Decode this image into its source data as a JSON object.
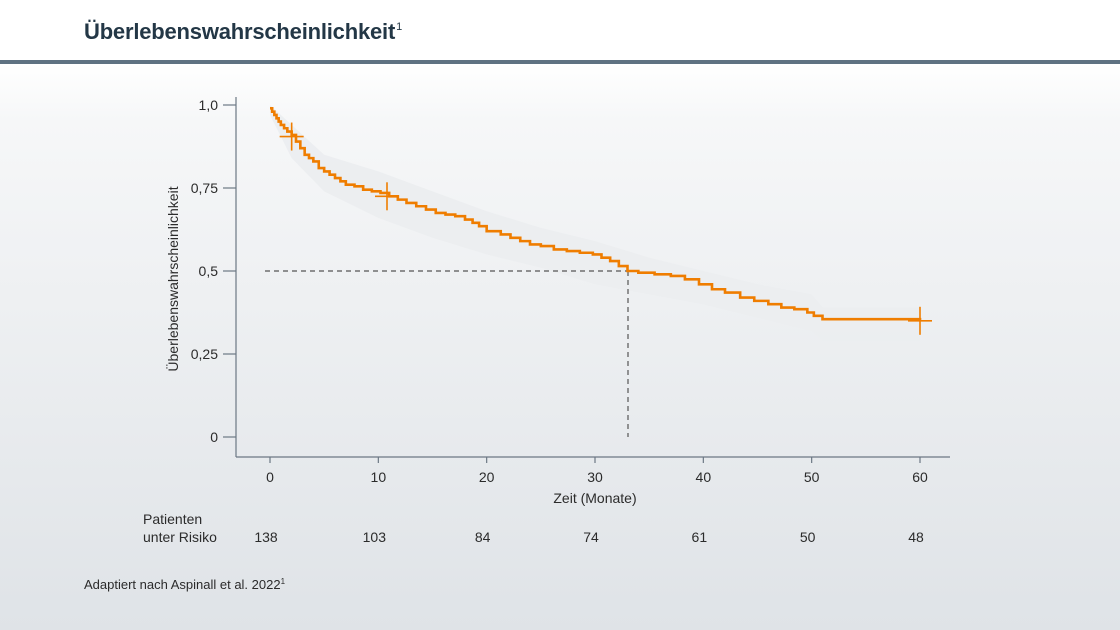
{
  "header": {
    "title": "Überlebenswahrscheinlichkeit",
    "title_superscript": "1",
    "rule_color": "#5f7282",
    "title_color": "#233746"
  },
  "chart_data": {
    "type": "line",
    "title": "",
    "xlabel": "Zeit (Monate)",
    "ylabel": "Überlebenswahrscheinlichkeit",
    "xlim": [
      0,
      60
    ],
    "ylim": [
      0,
      1
    ],
    "x_ticks": [
      0,
      10,
      20,
      30,
      40,
      50,
      60
    ],
    "x_tick_labels": [
      "0",
      "10",
      "20",
      "30",
      "40",
      "50",
      "60"
    ],
    "y_ticks": [
      0,
      0.25,
      0.5,
      0.75,
      1.0
    ],
    "y_tick_labels": [
      "0",
      "0,25",
      "0,5",
      "0,75",
      "1,0"
    ],
    "grid": false,
    "line_color": "#ef7d00",
    "ci_color": "#ebedef",
    "series": [
      {
        "step": true,
        "x": [
          0,
          0.2,
          0.4,
          0.6,
          0.8,
          1.0,
          1.3,
          1.6,
          2.0,
          2.4,
          2.8,
          3.2,
          3.6,
          4.0,
          4.5,
          5.0,
          5.5,
          6.0,
          6.5,
          7.0,
          7.8,
          8.6,
          9.4,
          10.2,
          11.0,
          11.8,
          12.6,
          13.5,
          14.4,
          15.3,
          16.2,
          17.1,
          18.0,
          18.7,
          19.3,
          20.0,
          21.3,
          22.2,
          23.1,
          24.0,
          25.0,
          26.2,
          27.4,
          28.6,
          29.8,
          30.6,
          31.4,
          32.2,
          33.0,
          34.0,
          35.5,
          37.0,
          38.3,
          39.6,
          40.8,
          42.0,
          43.4,
          44.7,
          46.0,
          47.2,
          48.4,
          49.6,
          50.2,
          51.0,
          60.0
        ],
        "y": [
          0.99,
          0.98,
          0.97,
          0.96,
          0.95,
          0.94,
          0.93,
          0.92,
          0.91,
          0.89,
          0.87,
          0.85,
          0.84,
          0.83,
          0.81,
          0.8,
          0.79,
          0.78,
          0.77,
          0.76,
          0.755,
          0.745,
          0.74,
          0.735,
          0.725,
          0.715,
          0.705,
          0.695,
          0.685,
          0.675,
          0.67,
          0.665,
          0.655,
          0.645,
          0.635,
          0.62,
          0.61,
          0.6,
          0.59,
          0.58,
          0.575,
          0.565,
          0.56,
          0.555,
          0.55,
          0.54,
          0.53,
          0.515,
          0.5,
          0.495,
          0.49,
          0.485,
          0.475,
          0.46,
          0.445,
          0.435,
          0.42,
          0.41,
          0.4,
          0.39,
          0.385,
          0.375,
          0.365,
          0.355,
          0.35
        ]
      }
    ],
    "ci_upper": {
      "x": [
        0,
        2,
        5,
        10,
        15,
        20,
        25,
        30,
        35,
        40,
        45,
        50,
        51,
        60
      ],
      "y": [
        1.0,
        0.94,
        0.85,
        0.8,
        0.74,
        0.68,
        0.63,
        0.59,
        0.54,
        0.5,
        0.46,
        0.43,
        0.39,
        0.39
      ]
    },
    "ci_lower": {
      "x": [
        0,
        2,
        5,
        10,
        15,
        20,
        25,
        30,
        35,
        40,
        45,
        50,
        51,
        60
      ],
      "y": [
        0.97,
        0.84,
        0.74,
        0.66,
        0.6,
        0.55,
        0.51,
        0.46,
        0.43,
        0.4,
        0.36,
        0.32,
        0.29,
        0.29
      ]
    },
    "censor_marks": [
      {
        "x": 2.0,
        "y": 0.905
      },
      {
        "x": 10.8,
        "y": 0.725
      },
      {
        "x": 60.0,
        "y": 0.35
      }
    ],
    "median_reference": {
      "x": 33.0,
      "y": 0.5
    },
    "risk_table": {
      "label_line1": "Patienten",
      "label_line2": "unter Risiko",
      "x": [
        0,
        10,
        20,
        30,
        40,
        50,
        60
      ],
      "counts": [
        "138",
        "103",
        "84",
        "74",
        "61",
        "50",
        "48"
      ]
    }
  },
  "footer": {
    "note": "Adaptiert nach Aspinall et al. 2022",
    "note_superscript": "1"
  }
}
